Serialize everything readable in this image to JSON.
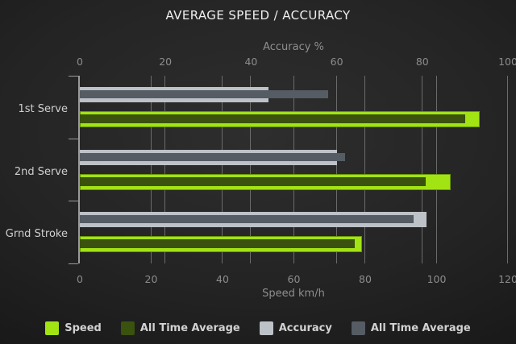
{
  "chart_data": {
    "type": "bar",
    "orientation": "horizontal",
    "title": "AVERAGE SPEED / ACCURACY",
    "categories": [
      "1st Serve",
      "2nd Serve",
      "Grnd Stroke"
    ],
    "axes": {
      "top": {
        "label": "Accuracy %",
        "ticks": [
          0,
          20,
          40,
          60,
          80,
          100
        ],
        "min": 0,
        "max": 100
      },
      "bottom": {
        "label": "Speed km/h",
        "ticks": [
          0,
          20,
          40,
          60,
          80,
          100,
          120
        ],
        "min": 0,
        "max": 120
      }
    },
    "series": [
      {
        "name": "Speed",
        "axis": "bottom",
        "role": "main",
        "color": "#a2e314",
        "values": [
          112,
          104,
          79
        ]
      },
      {
        "name": "All Time Average",
        "axis": "bottom",
        "role": "overlay",
        "color": "#3a520e",
        "values": [
          108,
          97,
          77
        ]
      },
      {
        "name": "Accuracy",
        "axis": "top",
        "role": "main",
        "color": "#bcc2c7",
        "values": [
          44,
          60,
          81
        ]
      },
      {
        "name": "All Time Average",
        "axis": "top",
        "role": "overlay",
        "color": "#565c64",
        "values": [
          58,
          62,
          78
        ]
      }
    ],
    "legend": [
      {
        "label": "Speed",
        "color": "#a2e314"
      },
      {
        "label": "All Time Average",
        "color": "#3a520e"
      },
      {
        "label": "Accuracy",
        "color": "#bcc2c7"
      },
      {
        "label": "All Time Average",
        "color": "#565c64"
      }
    ],
    "grid": true,
    "legend_position": "bottom"
  },
  "colors": {
    "background": "#232323",
    "title_text": "#efefef",
    "axis_text": "#8c8c8c",
    "category_text": "#cfcfcf",
    "gridline": "#6b6b6b",
    "axis_line": "#9a9a9a",
    "legend_text": "#d2d2d2"
  }
}
